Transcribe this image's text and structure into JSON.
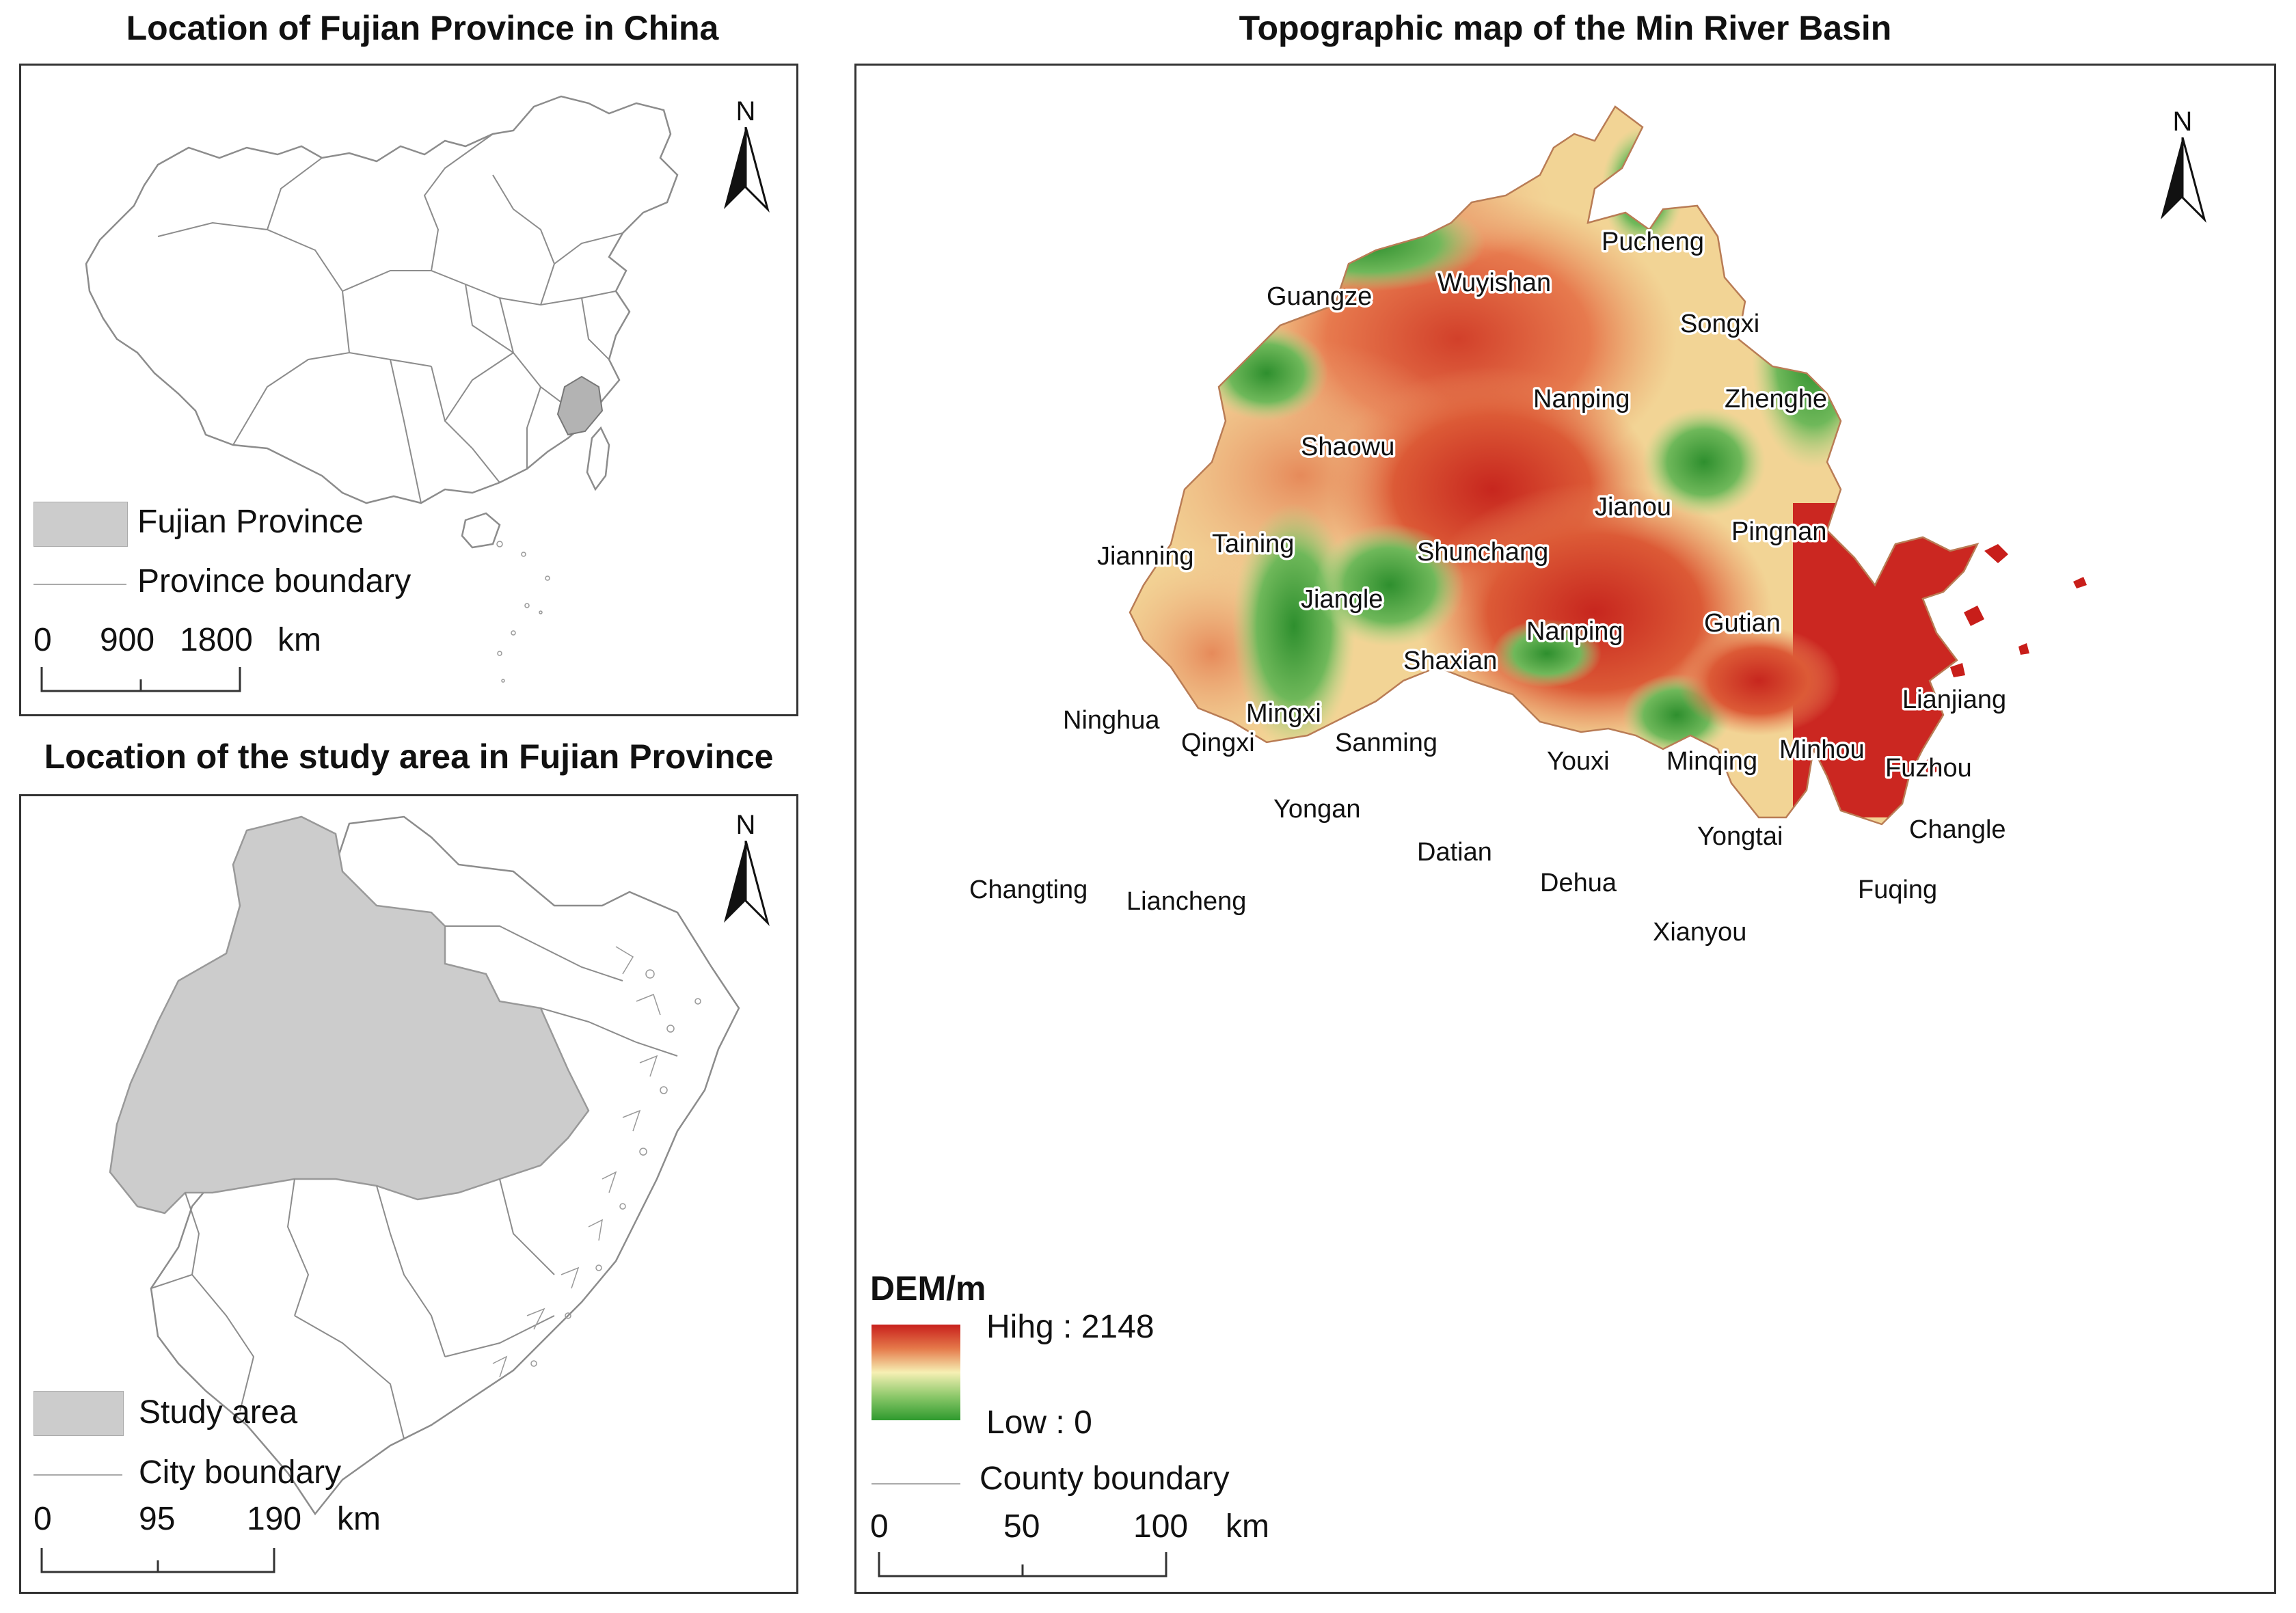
{
  "panel_china": {
    "title": "Location of Fujian Province in China",
    "legend": {
      "fill_label": "Fujian Province",
      "line_label": "Province boundary"
    },
    "scale": {
      "labels": [
        "0",
        "900",
        "1800"
      ],
      "unit": "km"
    },
    "north": "N"
  },
  "panel_fujian": {
    "title": "Location of the study area in Fujian Province",
    "legend": {
      "fill_label": "Study area",
      "line_label": "City boundary"
    },
    "scale": {
      "labels": [
        "0",
        "95",
        "190"
      ],
      "unit": "km"
    },
    "north": "N"
  },
  "panel_dem": {
    "title": "Topographic map of the Min River Basin",
    "north": "N",
    "legend": {
      "title": "DEM/m",
      "high_label": "Hihg : 2148",
      "low_label": "Low : 0",
      "line_label": "County boundary",
      "colors": {
        "high": "#c8201c",
        "mid": "#f6f0b4",
        "low": "#2e9a2e"
      }
    },
    "scale": {
      "labels": [
        "0",
        "50",
        "100"
      ],
      "unit": "km"
    },
    "places": [
      "Pucheng",
      "Wuyishan",
      "Guangze",
      "Songxi",
      "Nanping",
      "Zhenghe",
      "Shaowu",
      "Jianou",
      "Shunchang",
      "Pingnan",
      "Jianning",
      "Taining",
      "Jiangle",
      "Gutian",
      "Nanping",
      "Shaxian",
      "Lianjiang",
      "Ninghua",
      "Mingxi",
      "Qingxi",
      "Sanming",
      "Youxi",
      "Minqing",
      "Minhou",
      "Fuzhou",
      "Changle",
      "Yongan",
      "Yongtai",
      "Datian",
      "Dehua",
      "Changting",
      "Liancheng",
      "Fuqing",
      "Xianyou"
    ]
  },
  "colors": {
    "area_fill": "#cccccc",
    "boundary": "#8c8c8c"
  }
}
